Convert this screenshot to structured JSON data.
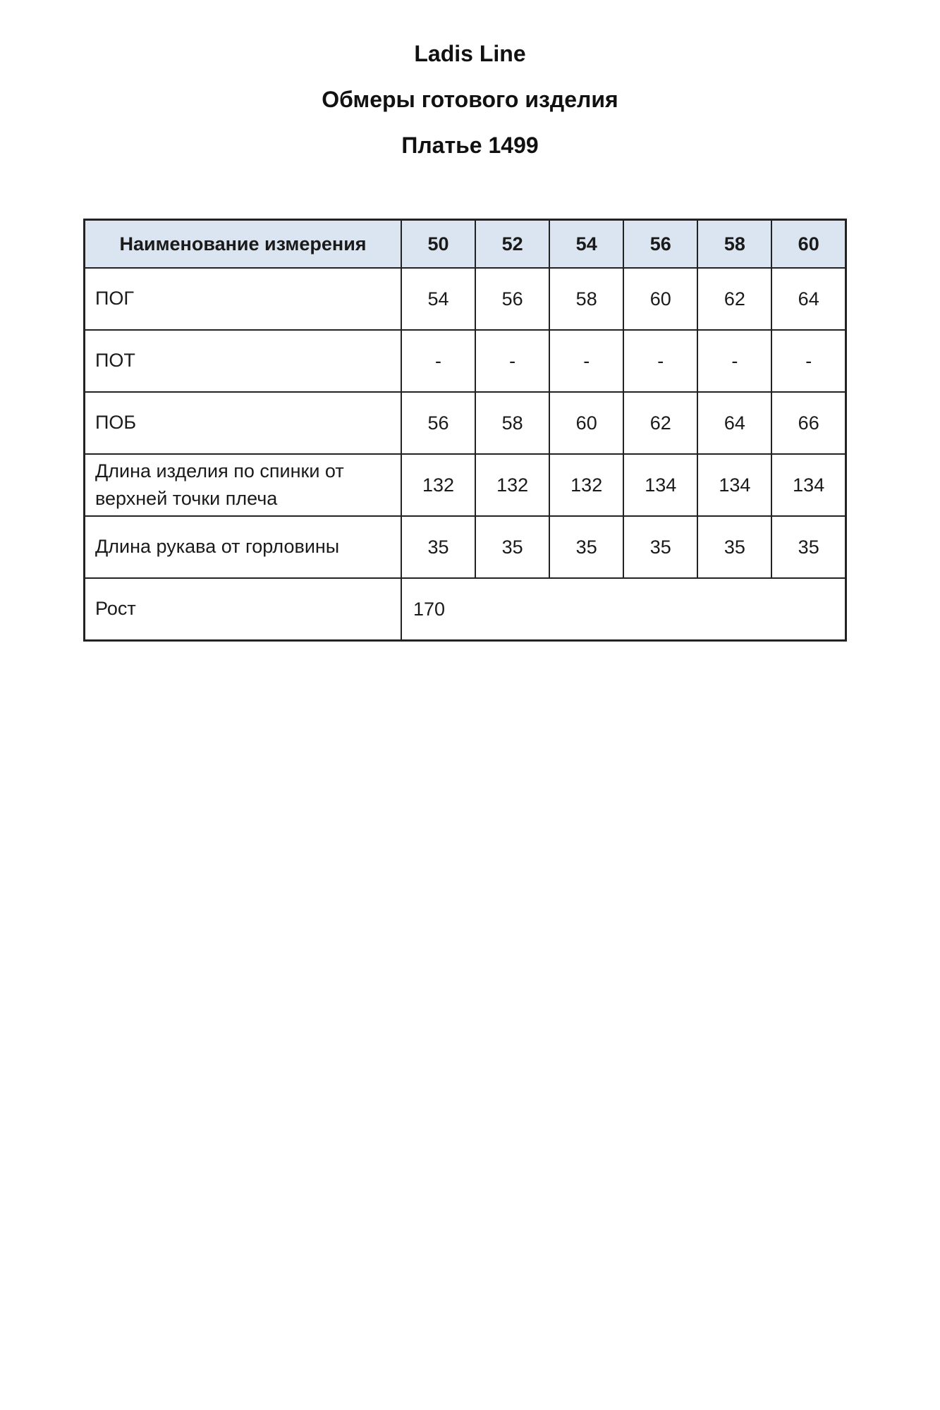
{
  "titles": [
    "Ladis Line",
    "Обмеры готового изделия",
    "Платье 1499"
  ],
  "table": {
    "header": [
      "Наименование измерения",
      "50",
      "52",
      "54",
      "56",
      "58",
      "60"
    ],
    "rows": [
      {
        "label": "ПОГ",
        "values": [
          "54",
          "56",
          "58",
          "60",
          "62",
          "64"
        ],
        "merged": false
      },
      {
        "label": "ПОТ",
        "values": [
          "-",
          "-",
          "-",
          "-",
          "-",
          "-"
        ],
        "merged": false
      },
      {
        "label": "ПОБ",
        "values": [
          "56",
          "58",
          "60",
          "62",
          "64",
          "66"
        ],
        "merged": false
      },
      {
        "label": "Длина изделия по спинки от верхней точки плеча",
        "values": [
          "132",
          "132",
          "132",
          "134",
          "134",
          "134"
        ],
        "merged": false
      },
      {
        "label": "Длина рукава от горловины",
        "values": [
          "35",
          "35",
          "35",
          "35",
          "35",
          "35"
        ],
        "merged": false
      },
      {
        "label": "Рост",
        "values": [
          "170"
        ],
        "merged": true
      }
    ],
    "colors": {
      "header_bg": "#dbe5f1",
      "border": "#222222",
      "text": "#1a1a1a"
    }
  }
}
